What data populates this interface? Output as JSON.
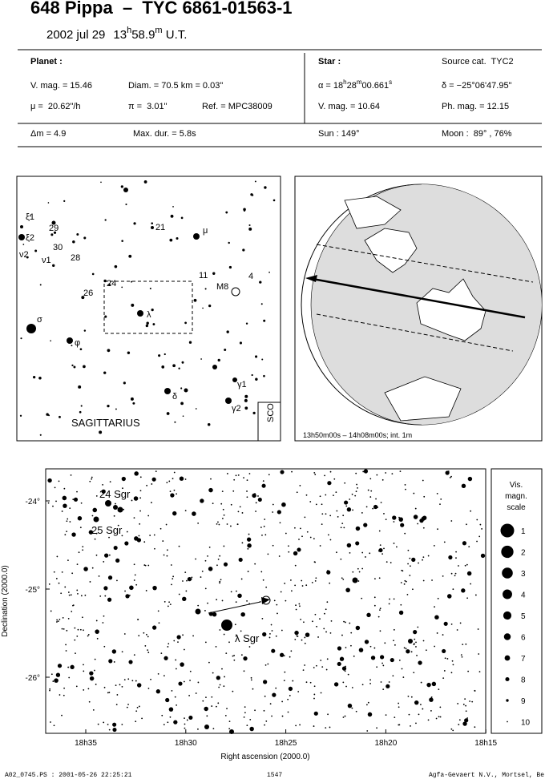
{
  "header": {
    "title": "648 Pippa  –  TYC 6861-01563-1",
    "date": "2002 jul 29",
    "time": [
      "13",
      "h",
      "58.9",
      "m",
      " U.T."
    ]
  },
  "info": {
    "planet_label": "Planet :",
    "vmag": "V. mag. = 15.46",
    "diam": "Diam. = 70.5 km = 0.03\"",
    "mu": "μ =  20.62\"/h",
    "pi": "π =  3.01\"",
    "ref": "Ref. = MPC38009",
    "dm": "Δm = 4.9",
    "maxdur": "Max. dur. = 5.8s",
    "star_label": "Star :",
    "source": "Source cat.  TYC2",
    "ra": [
      "α = 18",
      "h",
      "28",
      "m",
      "00.661",
      "s"
    ],
    "dec": "δ = −25°06'47.95\"",
    "star_vmag": "V. mag. = 10.64",
    "phmag": "Ph. mag. = 12.15",
    "sun": "Sun : 149°",
    "moon": "Moon :  89° , 76%"
  },
  "finder": {
    "labels": [
      "ξ1",
      "ξ2",
      "29",
      "30",
      "ν2",
      "ν1",
      "28",
      "21",
      "μ",
      "24",
      "26",
      "11",
      "M8",
      "4",
      "λ",
      "σ",
      "φ",
      "γ1",
      "δ",
      "γ2"
    ],
    "constellation": "SAGITTARIUS",
    "neighbour": "SCO"
  },
  "globe": {
    "caption": "13h50m00s – 14h08m00s; int. 1m"
  },
  "chart": {
    "dec_ticks": [
      "-24°",
      "-25°",
      "-26°"
    ],
    "ra_ticks": [
      "18h35",
      "18h30",
      "18h25",
      "18h20",
      "18h15"
    ],
    "ylabel": "Declination (2000.0)",
    "xlabel": "Right ascension (2000.0)",
    "stars": [
      "24 Sgr",
      "25 Sgr",
      "λ Sgr"
    ]
  },
  "mag_scale": {
    "title": [
      "Vis.",
      "magn.",
      "scale"
    ],
    "entries": [
      "1",
      "2",
      "3",
      "4",
      "5",
      "6",
      "7",
      "8",
      "9",
      "10"
    ]
  },
  "footer": {
    "file": "A02_0745.PS : 2001-05-26 22:25:21",
    "page": "1547",
    "credit": "Agfa-Gevaert N.V., Mortsel, Belgium"
  }
}
